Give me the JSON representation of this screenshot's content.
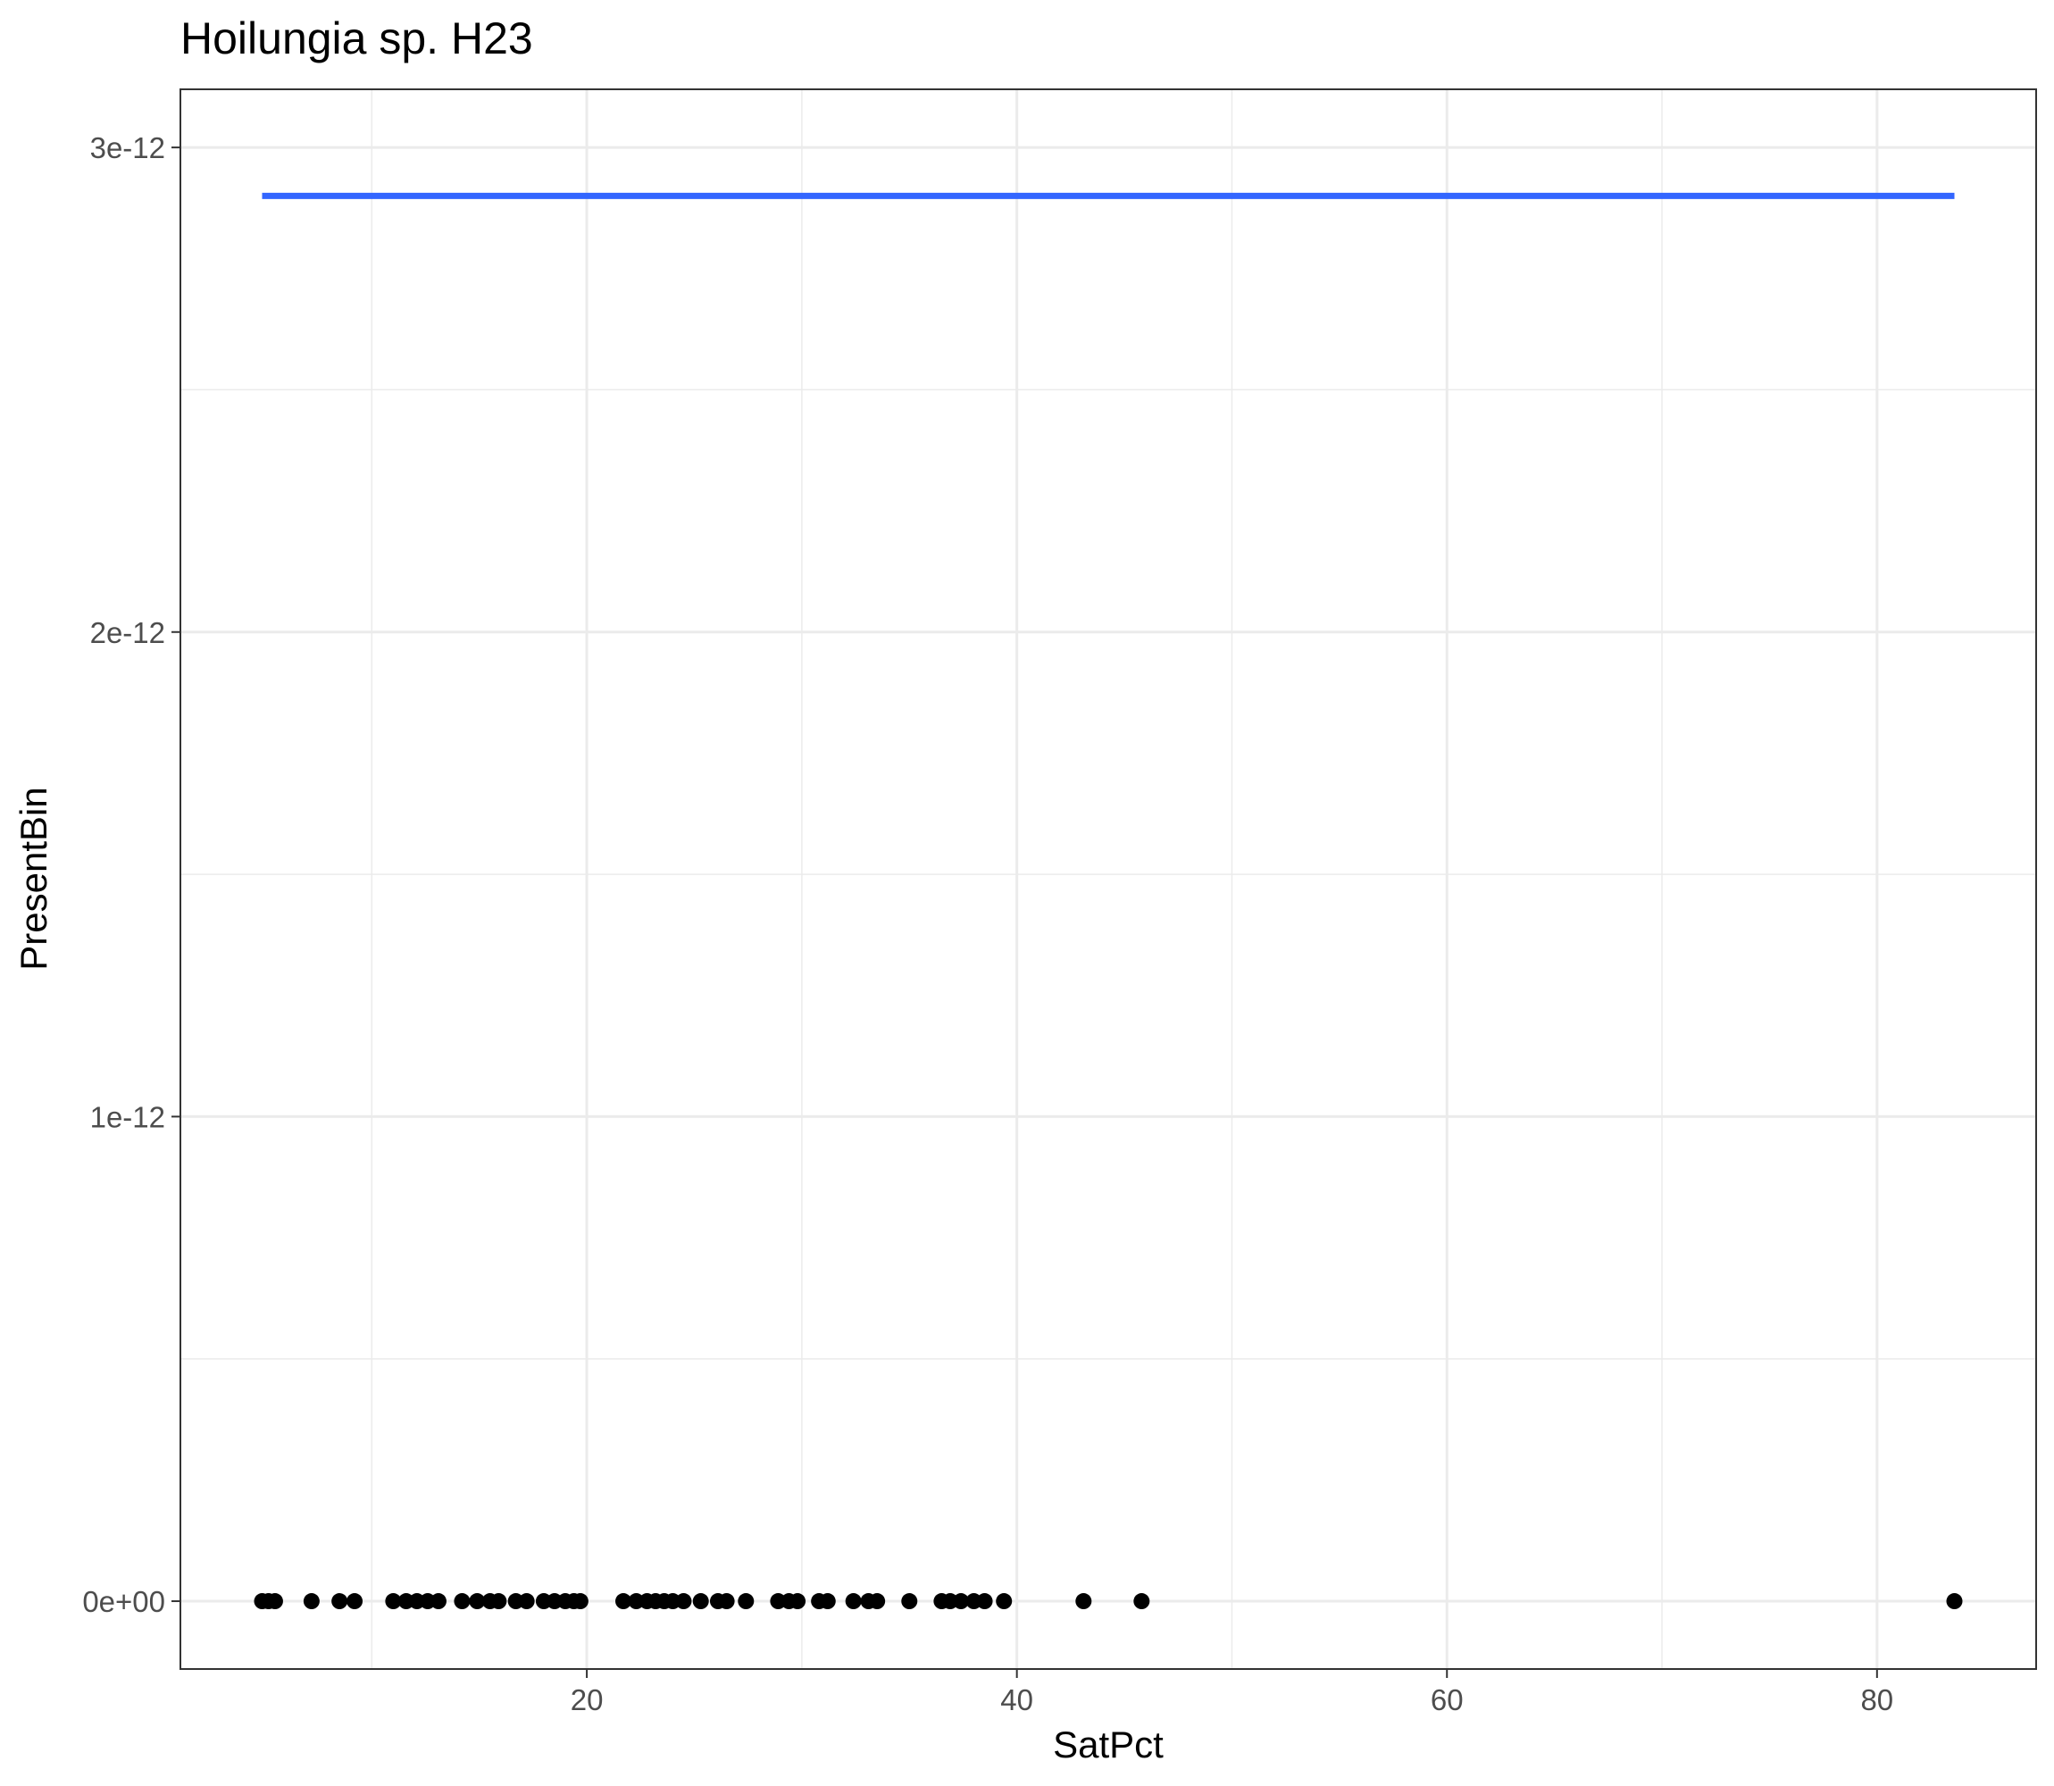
{
  "chart_data": {
    "type": "scatter",
    "title": "Hoilungia sp. H23",
    "xlabel": "SatPct",
    "ylabel": "PresentBin",
    "xlim": [
      1.1,
      87.4
    ],
    "ylim": [
      -1.4e-13,
      3.12e-12
    ],
    "x_ticks": [
      20,
      40,
      60,
      80
    ],
    "x_tick_labels": [
      "20",
      "40",
      "60",
      "80"
    ],
    "y_ticks": [
      0,
      1e-12,
      2e-12,
      3e-12
    ],
    "y_tick_labels": [
      "0e+00",
      "1e-12",
      "2e-12",
      "3e-12"
    ],
    "grid": true,
    "legend": "none",
    "points": {
      "y": 0,
      "x": [
        4.9,
        5.2,
        5.5,
        7.2,
        8.5,
        9.2,
        11.0,
        11.6,
        12.1,
        12.6,
        13.1,
        14.2,
        14.9,
        15.5,
        15.9,
        16.7,
        17.2,
        18.0,
        18.5,
        19.0,
        19.4,
        19.7,
        21.7,
        22.3,
        22.8,
        23.2,
        23.6,
        24.0,
        24.5,
        25.3,
        26.1,
        26.5,
        27.4,
        28.9,
        29.4,
        29.8,
        30.8,
        31.2,
        32.4,
        33.1,
        33.5,
        35.0,
        36.5,
        36.9,
        37.4,
        38.0,
        38.5,
        39.4,
        43.1,
        45.8,
        83.6
      ],
      "color": "#000000"
    },
    "fit_line": {
      "x": [
        4.9,
        83.6
      ],
      "y": [
        2.9e-12,
        2.9e-12
      ],
      "color": "#3366ff"
    },
    "colors": {
      "grid": "#ebebeb",
      "panel_border": "#333333",
      "tick_label": "#4d4d4d"
    }
  }
}
